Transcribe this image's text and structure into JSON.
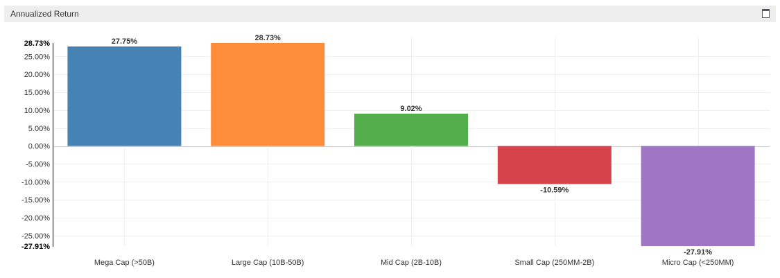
{
  "panel": {
    "title": "Annualized Return",
    "maximize_icon": "maximize-icon"
  },
  "chart_data": {
    "type": "bar",
    "title": "",
    "xlabel": "",
    "ylabel": "",
    "categories": [
      "Mega Cap (>50B)",
      "Large Cap (10B-50B)",
      "Mid Cap (2B-10B)",
      "Small Cap (250MM-2B)",
      "Micro Cap (<250MM)"
    ],
    "values": [
      27.75,
      28.73,
      9.02,
      -10.59,
      -27.91
    ],
    "data_labels": [
      "27.75%",
      "28.73%",
      "9.02%",
      "-10.59%",
      "-27.91%"
    ],
    "colors": [
      "#4682b4",
      "#ff8c3a",
      "#53ad4b",
      "#d7434b",
      "#9f76c4"
    ],
    "ylim": [
      -27.91,
      28.73
    ],
    "y_ticks": [
      25,
      20,
      15,
      10,
      5,
      0,
      -5,
      -10,
      -15,
      -20,
      -25
    ],
    "y_tick_labels": [
      "25.00%",
      "20.00%",
      "15.00%",
      "10.00%",
      "5.00%",
      "0.00%",
      "-5.00%",
      "-10.00%",
      "-15.00%",
      "-20.00%",
      "-25.00%"
    ],
    "y_extreme_labels": [
      "28.73%",
      "-27.91%"
    ],
    "grid": true,
    "legend": "none"
  }
}
